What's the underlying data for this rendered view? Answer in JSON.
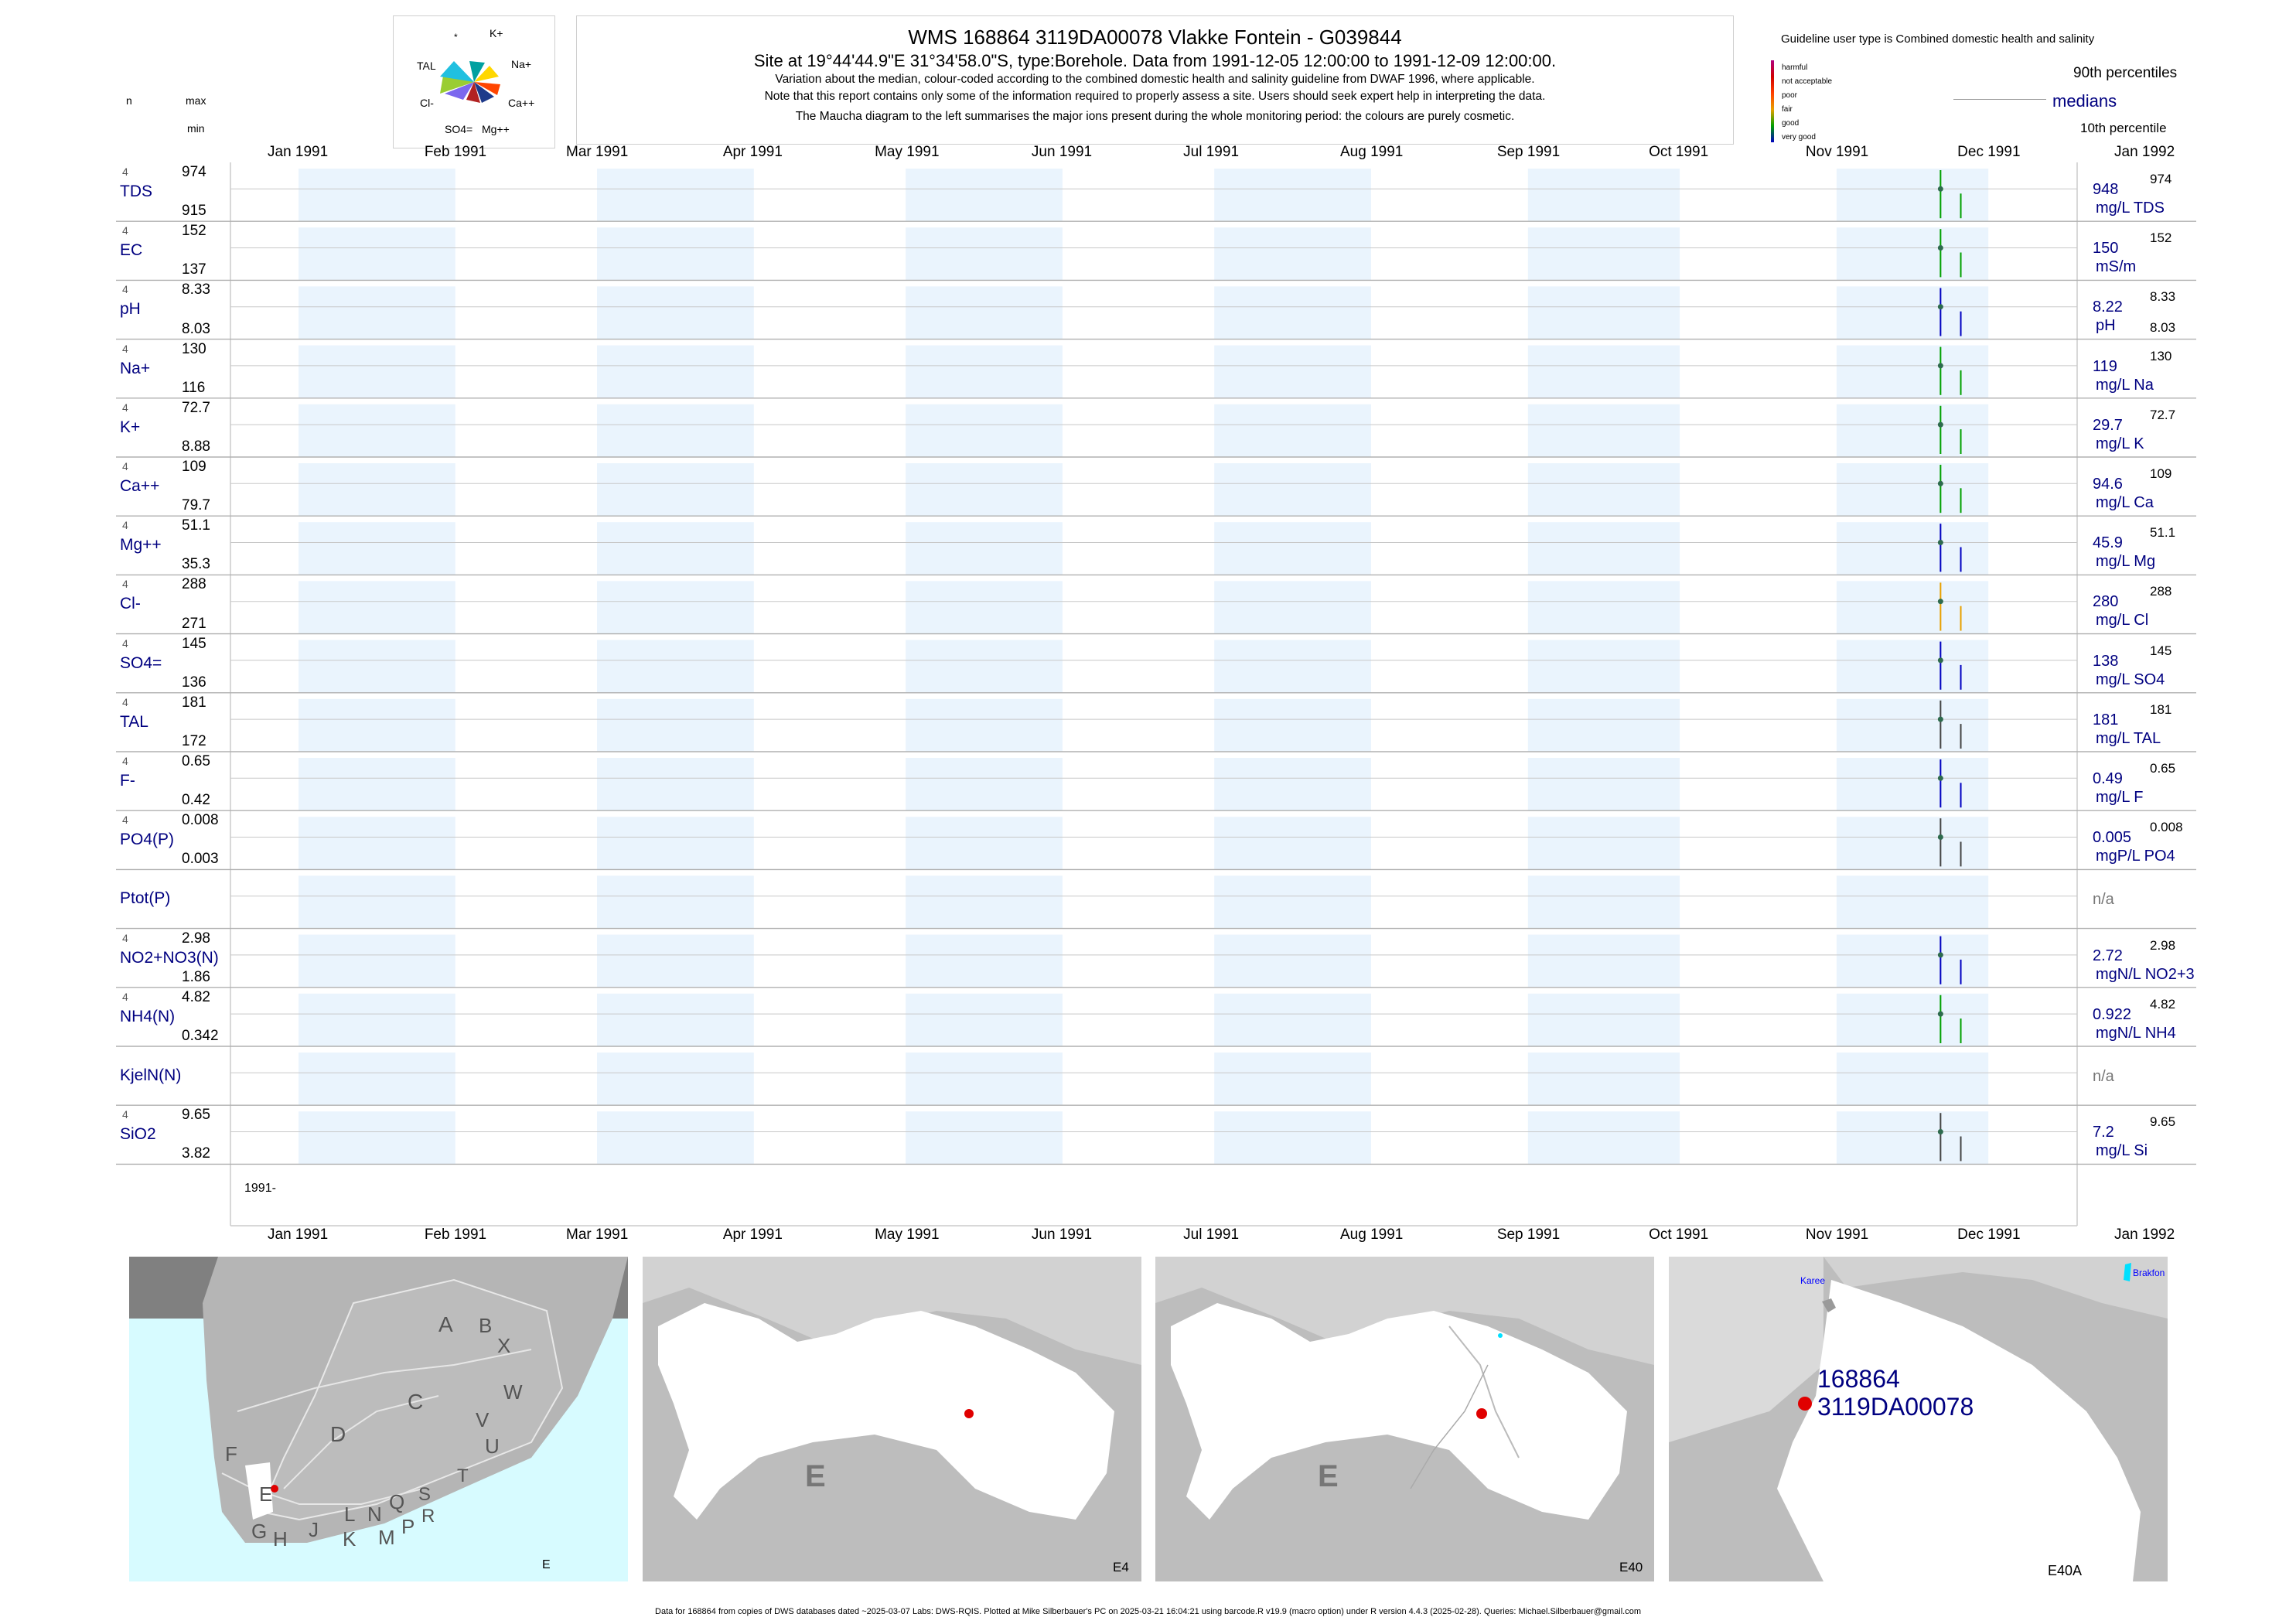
{
  "header": {
    "n_label": "n",
    "max_label": "max",
    "min_label": "min",
    "title": "WMS 168864 3119DA00078 Vlakke Fontein - G039844",
    "subtitle": "Site at 19°44'44.9\"E 31°34'58.0\"S, type:Borehole.  Data from 1991-12-05 12:00:00 to 1991-12-09 12:00:00.",
    "note1": "Variation about the median,  colour-coded according to the combined domestic health and salinity guideline from DWAF 1996, where applicable.",
    "note2": "Note that this report contains only some of the information required to properly assess a site. Users should seek expert help in interpreting the data.",
    "note3": "The Maucha diagram to the left summarises the major ions present during the whole monitoring period: the colours are purely cosmetic."
  },
  "maucha": {
    "labels": [
      "*",
      "K+",
      "TAL",
      "Na+",
      "Cl-",
      "Ca++",
      "SO4=",
      "Mg++"
    ]
  },
  "guideline": {
    "title": "Guideline user type is Combined domestic health and salinity",
    "classes": [
      {
        "label": "harmful",
        "color": "#b0007f"
      },
      {
        "label": "not acceptable",
        "color": "#d00000"
      },
      {
        "label": "poor",
        "color": "#ff4000"
      },
      {
        "label": "fair",
        "color": "#e8a000"
      },
      {
        "label": "good",
        "color": "#00a000"
      },
      {
        "label": "very good",
        "color": "#0000c0"
      }
    ],
    "p90": "90th percentiles",
    "medians": "medians",
    "p10": "10th percentile"
  },
  "months": [
    "Jan 1991",
    "Feb 1991",
    "Mar 1991",
    "Apr 1991",
    "May 1991",
    "Jun 1991",
    "Jul 1991",
    "Aug 1991",
    "Sep 1991",
    "Oct 1991",
    "Nov 1991",
    "Dec 1991",
    "Jan 1992"
  ],
  "year_label": "1991-",
  "chart_data": {
    "type": "line",
    "x_range": [
      "1991-01-01",
      "1992-01-01"
    ],
    "x_ticks": [
      "Jan 1991",
      "Feb 1991",
      "Mar 1991",
      "Apr 1991",
      "May 1991",
      "Jun 1991",
      "Jul 1991",
      "Aug 1991",
      "Sep 1991",
      "Oct 1991",
      "Nov 1991",
      "Dec 1991",
      "Jan 1992"
    ],
    "series": [
      {
        "name": "TDS",
        "n": "4",
        "max": "974",
        "min": "915",
        "median": "948",
        "unit": "mg/L TDS",
        "right_max": "974",
        "right_min": "",
        "color": "#00a000",
        "points": [
          {
            "x": "1991-12-05",
            "y": 974
          },
          {
            "x": "1991-12-09",
            "y": 915
          }
        ]
      },
      {
        "name": "EC",
        "n": "4",
        "max": "152",
        "min": "137",
        "median": "150",
        "unit": "mS/m",
        "right_max": "152",
        "right_min": "",
        "color": "#00a000",
        "points": [
          {
            "x": "1991-12-05",
            "y": 152
          },
          {
            "x": "1991-12-09",
            "y": 137
          }
        ]
      },
      {
        "name": "pH",
        "n": "4",
        "max": "8.33",
        "min": "8.03",
        "median": "8.22",
        "unit": "pH",
        "right_max": "8.33",
        "right_min": "8.03",
        "color": "#0000c0",
        "points": [
          {
            "x": "1991-12-05",
            "y": 8.33
          },
          {
            "x": "1991-12-09",
            "y": 8.03
          }
        ]
      },
      {
        "name": "Na+",
        "n": "4",
        "max": "130",
        "min": "116",
        "median": "119",
        "unit": "mg/L Na",
        "right_max": "130",
        "right_min": "",
        "color": "#00a000",
        "points": [
          {
            "x": "1991-12-05",
            "y": 130
          },
          {
            "x": "1991-12-09",
            "y": 116
          }
        ]
      },
      {
        "name": "K+",
        "n": "4",
        "max": "72.7",
        "min": "8.88",
        "median": "29.7",
        "unit": "mg/L K",
        "right_max": "72.7",
        "right_min": "",
        "color": "#00a000",
        "points": [
          {
            "x": "1991-12-05",
            "y": 72.7
          },
          {
            "x": "1991-12-09",
            "y": 8.88
          }
        ]
      },
      {
        "name": "Ca++",
        "n": "4",
        "max": "109",
        "min": "79.7",
        "median": "94.6",
        "unit": "mg/L Ca",
        "right_max": "109",
        "right_min": "",
        "color": "#00a000",
        "points": [
          {
            "x": "1991-12-05",
            "y": 109
          },
          {
            "x": "1991-12-09",
            "y": 79.7
          }
        ]
      },
      {
        "name": "Mg++",
        "n": "4",
        "max": "51.1",
        "min": "35.3",
        "median": "45.9",
        "unit": "mg/L Mg",
        "right_max": "51.1",
        "right_min": "",
        "color": "#0000c0",
        "points": [
          {
            "x": "1991-12-05",
            "y": 51.1
          },
          {
            "x": "1991-12-09",
            "y": 35.3
          }
        ]
      },
      {
        "name": "Cl-",
        "n": "4",
        "max": "288",
        "min": "271",
        "median": "280",
        "unit": "mg/L Cl",
        "right_max": "288",
        "right_min": "",
        "color": "#e8a000",
        "points": [
          {
            "x": "1991-12-05",
            "y": 288
          },
          {
            "x": "1991-12-09",
            "y": 271
          }
        ]
      },
      {
        "name": "SO4=",
        "n": "4",
        "max": "145",
        "min": "136",
        "median": "138",
        "unit": "mg/L SO4",
        "right_max": "145",
        "right_min": "",
        "color": "#0000c0",
        "points": [
          {
            "x": "1991-12-05",
            "y": 145
          },
          {
            "x": "1991-12-09",
            "y": 136
          }
        ]
      },
      {
        "name": "TAL",
        "n": "4",
        "max": "181",
        "min": "172",
        "median": "181",
        "unit": "mg/L TAL",
        "right_max": "181",
        "right_min": "",
        "color": "#444444",
        "points": [
          {
            "x": "1991-12-05",
            "y": 181
          },
          {
            "x": "1991-12-09",
            "y": 172
          }
        ]
      },
      {
        "name": "F-",
        "n": "4",
        "max": "0.65",
        "min": "0.42",
        "median": "0.49",
        "unit": "mg/L F",
        "right_max": "0.65",
        "right_min": "",
        "color": "#0000c0",
        "points": [
          {
            "x": "1991-12-05",
            "y": 0.65
          },
          {
            "x": "1991-12-09",
            "y": 0.42
          }
        ]
      },
      {
        "name": "PO4(P)",
        "n": "4",
        "max": "0.008",
        "min": "0.003",
        "median": "0.005",
        "unit": "mgP/L PO4",
        "right_max": "0.008",
        "right_min": "",
        "color": "#444444",
        "points": [
          {
            "x": "1991-12-05",
            "y": 0.008
          },
          {
            "x": "1991-12-09",
            "y": 0.003
          }
        ]
      },
      {
        "name": "Ptot(P)",
        "n": "",
        "max": "",
        "min": "",
        "median": "n/a",
        "unit": "",
        "right_max": "",
        "right_min": "",
        "color": "#444444",
        "points": []
      },
      {
        "name": "NO2+NO3(N)",
        "n": "4",
        "max": "2.98",
        "min": "1.86",
        "median": "2.72",
        "unit": "mgN/L NO2+3",
        "right_max": "2.98",
        "right_min": "",
        "color": "#0000c0",
        "points": [
          {
            "x": "1991-12-05",
            "y": 2.98
          },
          {
            "x": "1991-12-09",
            "y": 1.86
          }
        ]
      },
      {
        "name": "NH4(N)",
        "n": "4",
        "max": "4.82",
        "min": "0.342",
        "median": "0.922",
        "unit": "mgN/L NH4",
        "right_max": "4.82",
        "right_min": "",
        "color": "#00a000",
        "points": [
          {
            "x": "1991-12-05",
            "y": 4.82
          },
          {
            "x": "1991-12-09",
            "y": 0.342
          }
        ]
      },
      {
        "name": "KjelN(N)",
        "n": "",
        "max": "",
        "min": "",
        "median": "n/a",
        "unit": "",
        "right_max": "",
        "right_min": "",
        "color": "#444444",
        "points": []
      },
      {
        "name": "SiO2",
        "n": "4",
        "max": "9.65",
        "min": "3.82",
        "median": "7.2",
        "unit": "mg/L Si",
        "right_max": "9.65",
        "right_min": "",
        "color": "#444444",
        "points": [
          {
            "x": "1991-12-05",
            "y": 9.65
          },
          {
            "x": "1991-12-09",
            "y": 3.82
          }
        ]
      }
    ]
  },
  "maps": {
    "panel1": {
      "region": "E",
      "letters": [
        "A",
        "B",
        "X",
        "W",
        "C",
        "V",
        "U",
        "D",
        "F",
        "E",
        "T",
        "G",
        "H",
        "J",
        "L",
        "N",
        "Q",
        "S",
        "R",
        "K",
        "M",
        "P"
      ]
    },
    "panel2": {
      "label": "E4",
      "big": "E"
    },
    "panel3": {
      "label": "E40",
      "big": "E"
    },
    "panel4": {
      "label": "E40A",
      "site_id": "168864",
      "site_code": "3119DA00078",
      "town1": "Karee",
      "town2": "Brakfon"
    }
  },
  "footer": "Data for 168864 from copies of DWS databases dated ~2025-03-07 Labs: DWS-RQIS. Plotted at Mike Silberbauer's PC on 2025-03-21 16:04:21 using barcode.R v19.9 (macro option) under R version 4.4.3 (2025-02-28). Queries: Michael.Silberbauer@gmail.com"
}
